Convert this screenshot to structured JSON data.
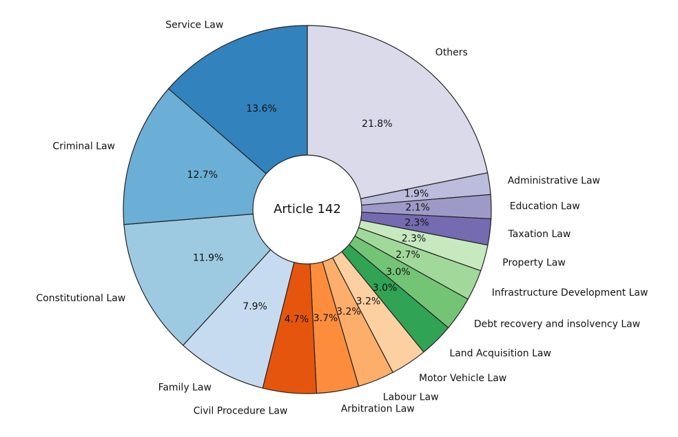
{
  "chart_data": {
    "type": "pie",
    "style": "donut",
    "center_label": "Article 142",
    "start": "top-clockwise",
    "slices": [
      {
        "label": "Others",
        "value": 21.8,
        "pct_label": "21.8%",
        "color": "#dadaeb"
      },
      {
        "label": "Administrative Law",
        "value": 1.9,
        "pct_label": "1.9%",
        "color": "#bcbddc"
      },
      {
        "label": "Education Law",
        "value": 2.1,
        "pct_label": "2.1%",
        "color": "#9e9ac8"
      },
      {
        "label": "Taxation Law",
        "value": 2.3,
        "pct_label": "2.3%",
        "color": "#756bb1"
      },
      {
        "label": "Property Law",
        "value": 2.3,
        "pct_label": "2.3%",
        "color": "#c7e9c0"
      },
      {
        "label": "Infrastructure Development Law",
        "value": 2.7,
        "pct_label": "2.7%",
        "color": "#a1d99b"
      },
      {
        "label": "Debt recovery and insolvency Law",
        "value": 3.0,
        "pct_label": "3.0%",
        "color": "#74c476"
      },
      {
        "label": "Land Acquisition Law",
        "value": 3.0,
        "pct_label": "3.0%",
        "color": "#31a354"
      },
      {
        "label": "Motor Vehicle Law",
        "value": 3.2,
        "pct_label": "3.2%",
        "color": "#fdd0a2"
      },
      {
        "label": "Labour Law",
        "value": 3.2,
        "pct_label": "3.2%",
        "color": "#fdae6b"
      },
      {
        "label": "Arbitration Law",
        "value": 3.7,
        "pct_label": "3.7%",
        "color": "#fd8d3c"
      },
      {
        "label": "Civil Procedure Law",
        "value": 4.7,
        "pct_label": "4.7%",
        "color": "#e6550d"
      },
      {
        "label": "Family Law",
        "value": 7.9,
        "pct_label": "7.9%",
        "color": "#c6dbef"
      },
      {
        "label": "Constitutional Law",
        "value": 11.9,
        "pct_label": "11.9%",
        "color": "#9ecae1"
      },
      {
        "label": "Criminal Law",
        "value": 12.7,
        "pct_label": "12.7%",
        "color": "#6baed6"
      },
      {
        "label": "Service Law",
        "value": 13.6,
        "pct_label": "13.6%",
        "color": "#3182bd"
      }
    ]
  }
}
